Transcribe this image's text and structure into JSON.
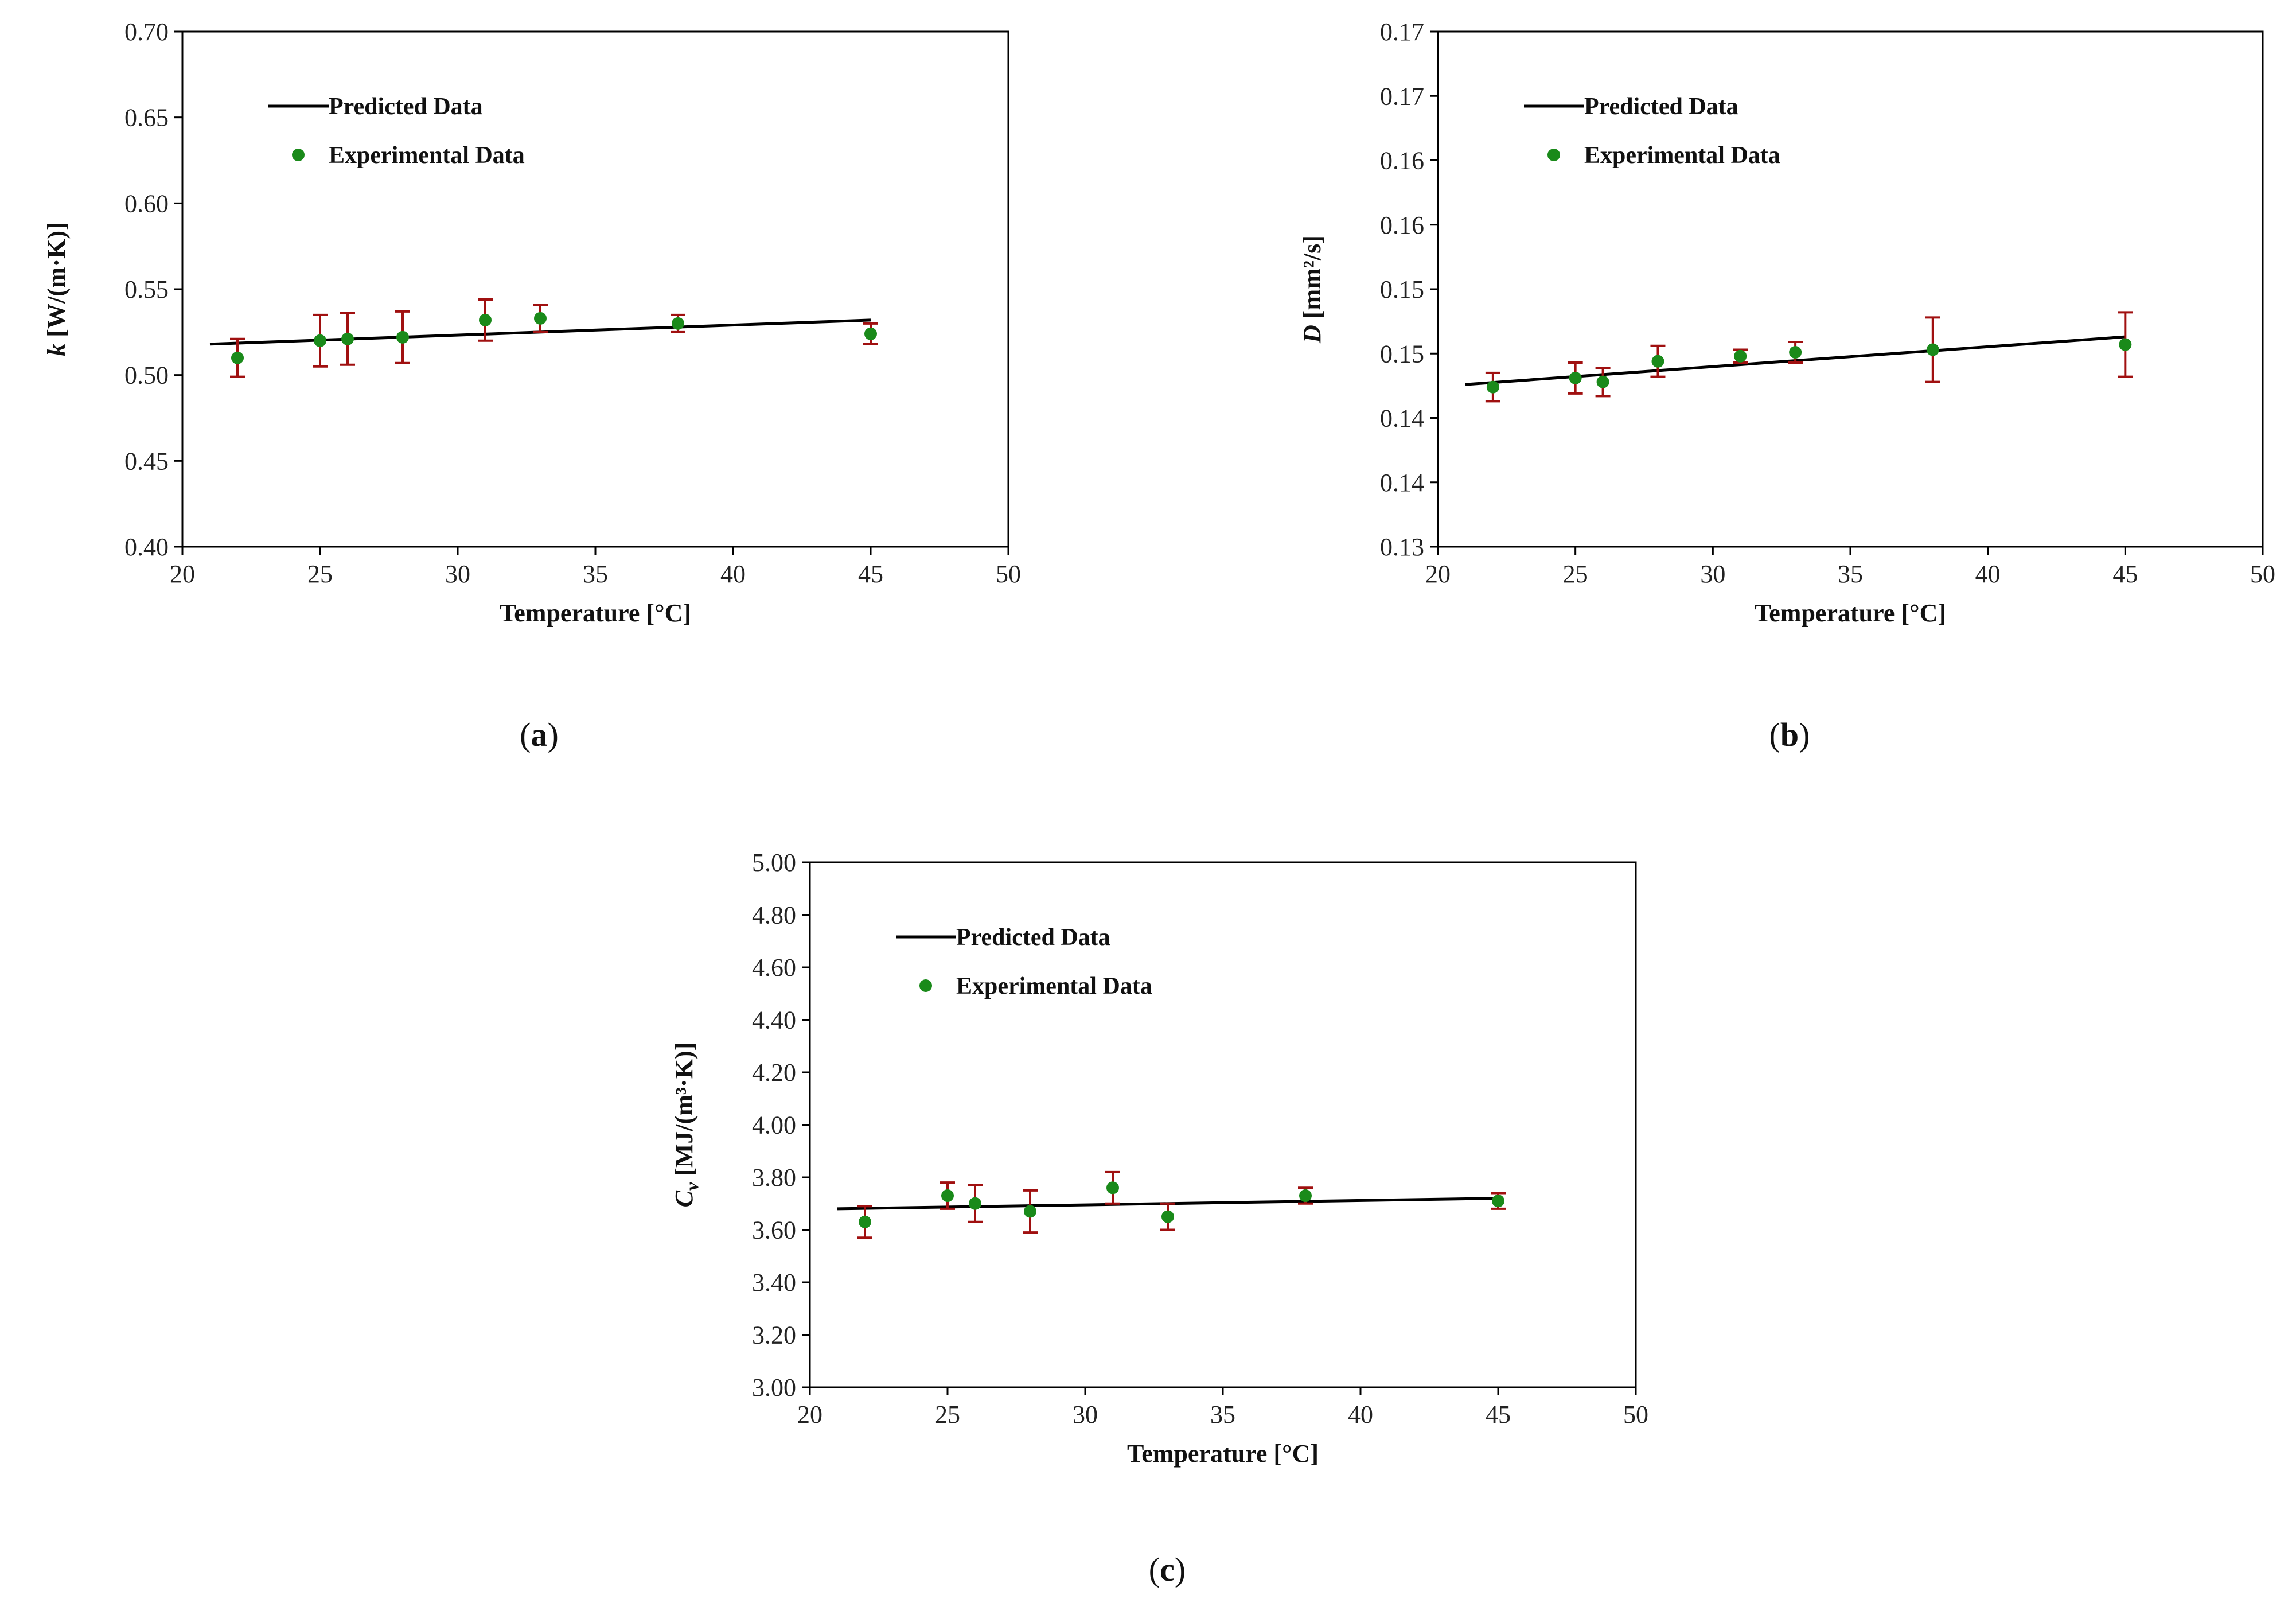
{
  "colors": {
    "predicted_line": "#000000",
    "experimental_marker": "#1a8a1a",
    "error_bar": "#a01010",
    "axis": "#000000"
  },
  "chart_data": [
    {
      "panel": "a",
      "type": "scatter",
      "xlabel": "Temperature [°C]",
      "ylabel_symbol": "k",
      "ylabel_rest": " [W/(m·K)]",
      "xlim": [
        20,
        50
      ],
      "ylim": [
        0.4,
        0.7
      ],
      "x_ticks": [
        "20",
        "25",
        "30",
        "35",
        "40",
        "45",
        "50"
      ],
      "y_ticks": [
        "0.40",
        "0.45",
        "0.50",
        "0.55",
        "0.60",
        "0.65",
        "0.70"
      ],
      "legend_position": "top-left",
      "series": [
        {
          "name": "Predicted Data",
          "kind": "line",
          "x": [
            21,
            45
          ],
          "y": [
            0.518,
            0.532
          ]
        },
        {
          "name": "Experimental Data",
          "kind": "points",
          "x": [
            22,
            25,
            26,
            28,
            31,
            33,
            38,
            45
          ],
          "y": [
            0.51,
            0.52,
            0.521,
            0.522,
            0.532,
            0.533,
            0.53,
            0.524
          ],
          "error": [
            0.011,
            0.015,
            0.015,
            0.015,
            0.012,
            0.008,
            0.005,
            0.006
          ]
        }
      ]
    },
    {
      "panel": "b",
      "type": "scatter",
      "xlabel": "Temperature [°C]",
      "ylabel_symbol": "D",
      "ylabel_rest": " [mm²/s]",
      "xlim": [
        20,
        50
      ],
      "ylim": [
        0.13,
        0.17
      ],
      "x_ticks": [
        "20",
        "25",
        "30",
        "35",
        "40",
        "45",
        "50"
      ],
      "y_ticks": [
        "0.13",
        "0.14",
        "0.14",
        "0.15",
        "0.15",
        "0.16",
        "0.16",
        "0.17",
        "0.17"
      ],
      "legend_position": "top-left",
      "series": [
        {
          "name": "Predicted Data",
          "kind": "line",
          "x": [
            21,
            45
          ],
          "y": [
            0.1426,
            0.1463
          ]
        },
        {
          "name": "Experimental Data",
          "kind": "points",
          "x": [
            22,
            25,
            26,
            28,
            31,
            33,
            38,
            45
          ],
          "y": [
            0.1424,
            0.1431,
            0.1428,
            0.1444,
            0.1448,
            0.1451,
            0.1453,
            0.1457
          ],
          "error": [
            0.0011,
            0.0012,
            0.0011,
            0.0012,
            0.0005,
            0.0008,
            0.0025,
            0.0025
          ]
        }
      ]
    },
    {
      "panel": "c",
      "type": "scatter",
      "xlabel": "Temperature [°C]",
      "ylabel_symbol": "C",
      "ylabel_sub": "v",
      "ylabel_rest": " [MJ/(m³·K)]",
      "xlim": [
        20,
        50
      ],
      "ylim": [
        3.0,
        5.0
      ],
      "x_ticks": [
        "20",
        "25",
        "30",
        "35",
        "40",
        "45",
        "50"
      ],
      "y_ticks": [
        "3.00",
        "3.20",
        "3.40",
        "3.60",
        "3.80",
        "4.00",
        "4.20",
        "4.40",
        "4.60",
        "4.80",
        "5.00"
      ],
      "legend_position": "top-left",
      "series": [
        {
          "name": "Predicted Data",
          "kind": "line",
          "x": [
            21,
            45
          ],
          "y": [
            3.68,
            3.72
          ]
        },
        {
          "name": "Experimental Data",
          "kind": "points",
          "x": [
            22,
            25,
            26,
            28,
            31,
            33,
            38,
            45
          ],
          "y": [
            3.63,
            3.73,
            3.7,
            3.67,
            3.76,
            3.65,
            3.73,
            3.71
          ],
          "error": [
            0.06,
            0.05,
            0.07,
            0.08,
            0.06,
            0.05,
            0.03,
            0.03
          ]
        }
      ]
    }
  ],
  "panel_labels": [
    "a",
    "b",
    "c"
  ]
}
